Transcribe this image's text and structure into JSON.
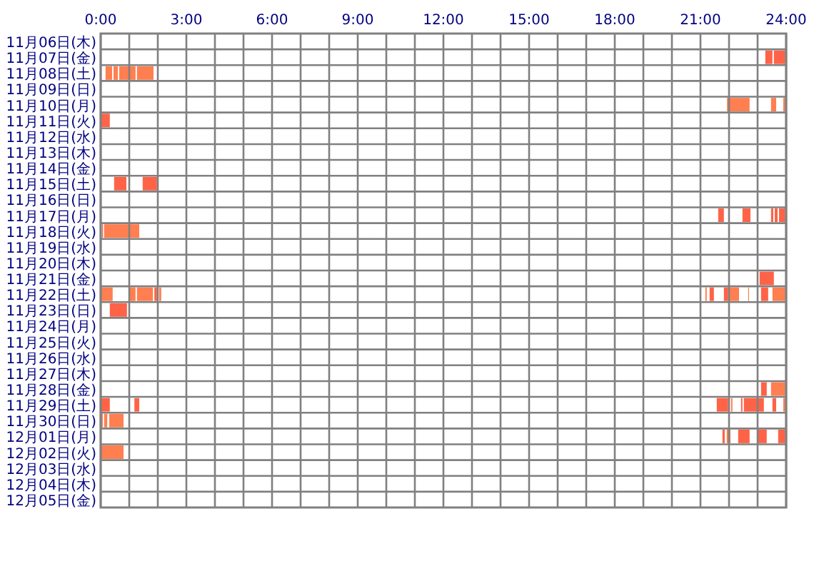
{
  "chart_data": {
    "type": "bar",
    "orientation": "horizontal",
    "grid": true,
    "categories": [
      "11月06日(木)",
      "11月07日(金)",
      "11月08日(土)",
      "11月09日(日)",
      "11月10日(月)",
      "11月11日(火)",
      "11月12日(水)",
      "11月13日(木)",
      "11月14日(金)",
      "11月15日(土)",
      "11月16日(日)",
      "11月17日(月)",
      "11月18日(火)",
      "11月19日(水)",
      "11月20日(木)",
      "11月21日(金)",
      "11月22日(土)",
      "11月23日(日)",
      "11月24日(月)",
      "11月25日(火)",
      "11月26日(水)",
      "11月27日(木)",
      "11月28日(金)",
      "11月29日(土)",
      "11月30日(日)",
      "12月01日(月)",
      "12月02日(火)",
      "12月03日(水)",
      "12月04日(木)",
      "12月05日(金)"
    ],
    "xlim": [
      0,
      24
    ],
    "xticks": [
      {
        "value": 0,
        "label": "0:00"
      },
      {
        "value": 1,
        "label": null
      },
      {
        "value": 2,
        "label": null
      },
      {
        "value": 3,
        "label": "3:00"
      },
      {
        "value": 4,
        "label": null
      },
      {
        "value": 5,
        "label": null
      },
      {
        "value": 6,
        "label": "6:00"
      },
      {
        "value": 7,
        "label": null
      },
      {
        "value": 8,
        "label": null
      },
      {
        "value": 9,
        "label": "9:00"
      },
      {
        "value": 10,
        "label": null
      },
      {
        "value": 11,
        "label": null
      },
      {
        "value": 12,
        "label": "12:00"
      },
      {
        "value": 13,
        "label": null
      },
      {
        "value": 14,
        "label": null
      },
      {
        "value": 15,
        "label": "15:00"
      },
      {
        "value": 16,
        "label": null
      },
      {
        "value": 17,
        "label": null
      },
      {
        "value": 18,
        "label": "18:00"
      },
      {
        "value": 19,
        "label": null
      },
      {
        "value": 20,
        "label": null
      },
      {
        "value": 21,
        "label": "21:00"
      },
      {
        "value": 22,
        "label": null
      },
      {
        "value": 23,
        "label": null
      },
      {
        "value": 24,
        "label": "24:00"
      }
    ],
    "series": [
      {
        "base": [
          null,
          23.27,
          0.17,
          null,
          21.93,
          0,
          null,
          null,
          null,
          0.47,
          null,
          21.62,
          0.05,
          null,
          null,
          23.07,
          0,
          0.32,
          null,
          null,
          null,
          null,
          23.12,
          0,
          0.03,
          21.77,
          0,
          null,
          null,
          null
        ],
        "values": [
          null,
          0.25,
          0.23,
          null,
          0.79,
          0.32,
          null,
          null,
          null,
          0.43,
          null,
          0.2,
          0.03,
          null,
          null,
          0.5,
          0.42,
          0.6,
          null,
          null,
          null,
          null,
          0.2,
          0.32,
          0.04,
          0.08,
          0.8,
          null,
          null,
          null
        ],
        "colors": [
          null,
          "#ff6347",
          "#ff7f50",
          null,
          "#ff7f50",
          "#ff6347",
          null,
          null,
          null,
          "#ff6347",
          null,
          "#ff6347",
          "#ff6347",
          null,
          null,
          "#ff6347",
          "#ff7f50",
          "#ff6347",
          null,
          null,
          null,
          null,
          "#ff6347",
          "#ff6347",
          "#ff6347",
          "#ff6347",
          "#ff7f50",
          null,
          null,
          null
        ]
      },
      {
        "base": [
          null,
          23.57,
          0.45,
          null,
          23.47,
          null,
          null,
          null,
          null,
          1.47,
          null,
          22.47,
          0.12,
          null,
          null,
          null,
          1.02,
          null,
          null,
          null,
          null,
          null,
          23.47,
          1.18,
          0.12,
          21.92,
          null,
          null,
          null,
          null
        ],
        "values": [
          null,
          0.4,
          0.15,
          null,
          0.18,
          null,
          null,
          null,
          null,
          0.5,
          null,
          0.28,
          1.23,
          null,
          null,
          null,
          0.2,
          null,
          null,
          null,
          null,
          null,
          0.5,
          0.17,
          0.11,
          0.13,
          null,
          null,
          null,
          null
        ],
        "colors": [
          null,
          "#ff6347",
          "#ff7f50",
          null,
          "#ff7f50",
          null,
          null,
          null,
          null,
          "#ff6347",
          null,
          "#ff6347",
          "#ff7f50",
          null,
          null,
          null,
          "#ff7f50",
          null,
          null,
          null,
          null,
          null,
          "#ff7f50",
          "#ff6347",
          "#ff7f50",
          "#ff7f50",
          null,
          null,
          null,
          null
        ]
      },
      {
        "base": [
          null,
          null,
          0.65,
          null,
          23.9,
          null,
          null,
          null,
          null,
          null,
          null,
          23.47,
          null,
          null,
          null,
          null,
          1.27,
          null,
          null,
          null,
          null,
          null,
          null,
          21.57,
          0.3,
          22.32,
          null,
          null,
          null,
          null
        ],
        "values": [
          null,
          null,
          0.57,
          null,
          0.07,
          null,
          null,
          null,
          null,
          null,
          null,
          0.08,
          null,
          null,
          null,
          null,
          0.56,
          null,
          null,
          null,
          null,
          null,
          null,
          0.4,
          0.5,
          0.4,
          null,
          null,
          null,
          null
        ],
        "colors": [
          null,
          null,
          "#ff7f50",
          null,
          "#ff7f50",
          null,
          null,
          null,
          null,
          null,
          null,
          "#ff6347",
          null,
          null,
          null,
          null,
          "#ff7f50",
          null,
          null,
          null,
          null,
          null,
          null,
          "#ff6347",
          "#ff7f50",
          "#ff6347",
          null,
          null,
          null,
          null
        ]
      },
      {
        "base": [
          null,
          null,
          1.27,
          null,
          null,
          null,
          null,
          null,
          null,
          null,
          null,
          23.6,
          null,
          null,
          null,
          null,
          1.88,
          null,
          null,
          null,
          null,
          null,
          null,
          22.07,
          null,
          23.02,
          null,
          null,
          null,
          null
        ],
        "values": [
          null,
          null,
          0.58,
          null,
          null,
          null,
          null,
          null,
          null,
          null,
          null,
          0.1,
          null,
          null,
          null,
          null,
          0.09,
          null,
          null,
          null,
          null,
          null,
          null,
          0.05,
          null,
          0.3,
          null,
          null,
          null,
          null
        ],
        "colors": [
          null,
          null,
          "#ff7f50",
          null,
          null,
          null,
          null,
          null,
          null,
          null,
          null,
          "#ff6347",
          null,
          null,
          null,
          null,
          "#ff6347",
          null,
          null,
          null,
          null,
          null,
          null,
          "#ff7f50",
          null,
          "#ff6347",
          null,
          null,
          null,
          null
        ]
      },
      {
        "base": [
          null,
          null,
          null,
          null,
          null,
          null,
          null,
          null,
          null,
          null,
          null,
          23.75,
          null,
          null,
          null,
          null,
          2.05,
          null,
          null,
          null,
          null,
          null,
          null,
          22.42,
          null,
          23.72,
          null,
          null,
          null,
          null
        ],
        "values": [
          null,
          null,
          null,
          null,
          null,
          null,
          null,
          null,
          null,
          null,
          null,
          0.22,
          null,
          null,
          null,
          null,
          0.07,
          null,
          null,
          null,
          null,
          null,
          null,
          0.05,
          null,
          0.25,
          null,
          null,
          null,
          null
        ],
        "colors": [
          null,
          null,
          null,
          null,
          null,
          null,
          null,
          null,
          null,
          null,
          null,
          "#ff6347",
          null,
          null,
          null,
          null,
          "#ff7f50",
          null,
          null,
          null,
          null,
          null,
          null,
          "#ff6347",
          null,
          "#ff6347",
          null,
          null,
          null,
          null
        ]
      },
      {
        "base": [
          null,
          null,
          null,
          null,
          null,
          null,
          null,
          null,
          null,
          null,
          null,
          null,
          null,
          null,
          null,
          null,
          21.17,
          null,
          null,
          null,
          null,
          null,
          null,
          22.52,
          null,
          null,
          null,
          null,
          null,
          null
        ],
        "values": [
          null,
          null,
          null,
          null,
          null,
          null,
          null,
          null,
          null,
          null,
          null,
          null,
          null,
          null,
          null,
          null,
          0.05,
          null,
          null,
          null,
          null,
          null,
          null,
          0.7,
          null,
          null,
          null,
          null,
          null,
          null
        ],
        "colors": [
          null,
          null,
          null,
          null,
          null,
          null,
          null,
          null,
          null,
          null,
          null,
          null,
          null,
          null,
          null,
          null,
          "#ff7f50",
          null,
          null,
          null,
          null,
          null,
          null,
          "#ff6347",
          null,
          null,
          null,
          null,
          null,
          null
        ]
      },
      {
        "base": [
          null,
          null,
          null,
          null,
          null,
          null,
          null,
          null,
          null,
          null,
          null,
          null,
          null,
          null,
          null,
          null,
          21.32,
          null,
          null,
          null,
          null,
          null,
          null,
          23.52,
          null,
          null,
          null,
          null,
          null,
          null
        ],
        "values": [
          null,
          null,
          null,
          null,
          null,
          null,
          null,
          null,
          null,
          null,
          null,
          null,
          null,
          null,
          null,
          null,
          0.15,
          null,
          null,
          null,
          null,
          null,
          null,
          0.13,
          null,
          null,
          null,
          null,
          null,
          null
        ],
        "colors": [
          null,
          null,
          null,
          null,
          null,
          null,
          null,
          null,
          null,
          null,
          null,
          null,
          null,
          null,
          null,
          null,
          "#ff6347",
          null,
          null,
          null,
          null,
          null,
          null,
          "#ff6347",
          null,
          null,
          null,
          null,
          null,
          null
        ]
      },
      {
        "base": [
          null,
          null,
          null,
          null,
          null,
          null,
          null,
          null,
          null,
          null,
          null,
          null,
          null,
          null,
          null,
          null,
          21.82,
          null,
          null,
          null,
          null,
          null,
          null,
          23.9,
          null,
          null,
          null,
          null,
          null,
          null
        ],
        "values": [
          null,
          null,
          null,
          null,
          null,
          null,
          null,
          null,
          null,
          null,
          null,
          null,
          null,
          null,
          null,
          null,
          0.15,
          null,
          null,
          null,
          null,
          null,
          null,
          0.07,
          null,
          null,
          null,
          null,
          null,
          null
        ],
        "colors": [
          null,
          null,
          null,
          null,
          null,
          null,
          null,
          null,
          null,
          null,
          null,
          null,
          null,
          null,
          null,
          null,
          "#ff6347",
          null,
          null,
          null,
          null,
          null,
          null,
          "#ff7f50",
          null,
          null,
          null,
          null,
          null,
          null
        ]
      },
      {
        "base": [
          null,
          null,
          null,
          null,
          null,
          null,
          null,
          null,
          null,
          null,
          null,
          null,
          null,
          null,
          null,
          null,
          22.02,
          null,
          null,
          null,
          null,
          null,
          null,
          null,
          null,
          null,
          null,
          null,
          null,
          null
        ],
        "values": [
          null,
          null,
          null,
          null,
          null,
          null,
          null,
          null,
          null,
          null,
          null,
          null,
          null,
          null,
          null,
          null,
          0.33,
          null,
          null,
          null,
          null,
          null,
          null,
          null,
          null,
          null,
          null,
          null,
          null,
          null
        ],
        "colors": [
          null,
          null,
          null,
          null,
          null,
          null,
          null,
          null,
          null,
          null,
          null,
          null,
          null,
          null,
          null,
          null,
          "#ff7f50",
          null,
          null,
          null,
          null,
          null,
          null,
          null,
          null,
          null,
          null,
          null,
          null,
          null
        ]
      },
      {
        "base": [
          null,
          null,
          null,
          null,
          null,
          null,
          null,
          null,
          null,
          null,
          null,
          null,
          null,
          null,
          null,
          null,
          22.67,
          null,
          null,
          null,
          null,
          null,
          null,
          null,
          null,
          null,
          null,
          null,
          null,
          null
        ],
        "values": [
          null,
          null,
          null,
          null,
          null,
          null,
          null,
          null,
          null,
          null,
          null,
          null,
          null,
          null,
          null,
          null,
          0.03,
          null,
          null,
          null,
          null,
          null,
          null,
          null,
          null,
          null,
          null,
          null,
          null,
          null
        ],
        "colors": [
          null,
          null,
          null,
          null,
          null,
          null,
          null,
          null,
          null,
          null,
          null,
          null,
          null,
          null,
          null,
          null,
          "#ff7f50",
          null,
          null,
          null,
          null,
          null,
          null,
          null,
          null,
          null,
          null,
          null,
          null,
          null
        ]
      },
      {
        "base": [
          null,
          null,
          null,
          null,
          null,
          null,
          null,
          null,
          null,
          null,
          null,
          null,
          null,
          null,
          null,
          null,
          23.12,
          null,
          null,
          null,
          null,
          null,
          null,
          null,
          null,
          null,
          null,
          null,
          null,
          null
        ],
        "values": [
          null,
          null,
          null,
          null,
          null,
          null,
          null,
          null,
          null,
          null,
          null,
          null,
          null,
          null,
          null,
          null,
          0.25,
          null,
          null,
          null,
          null,
          null,
          null,
          null,
          null,
          null,
          null,
          null,
          null,
          null
        ],
        "colors": [
          null,
          null,
          null,
          null,
          null,
          null,
          null,
          null,
          null,
          null,
          null,
          null,
          null,
          null,
          null,
          null,
          "#ff6347",
          null,
          null,
          null,
          null,
          null,
          null,
          null,
          null,
          null,
          null,
          null,
          null,
          null
        ]
      },
      {
        "base": [
          null,
          null,
          null,
          null,
          null,
          null,
          null,
          null,
          null,
          null,
          null,
          null,
          null,
          null,
          null,
          null,
          23.52,
          null,
          null,
          null,
          null,
          null,
          null,
          null,
          null,
          null,
          null,
          null,
          null,
          null
        ],
        "values": [
          null,
          null,
          null,
          null,
          null,
          null,
          null,
          null,
          null,
          null,
          null,
          null,
          null,
          null,
          null,
          null,
          0.45,
          null,
          null,
          null,
          null,
          null,
          null,
          null,
          null,
          null,
          null,
          null,
          null,
          null
        ],
        "colors": [
          null,
          null,
          null,
          null,
          null,
          null,
          null,
          null,
          null,
          null,
          null,
          null,
          null,
          null,
          null,
          null,
          "#ff7f50",
          null,
          null,
          null,
          null,
          null,
          null,
          null,
          null,
          null,
          null,
          null,
          null,
          null
        ]
      }
    ]
  }
}
